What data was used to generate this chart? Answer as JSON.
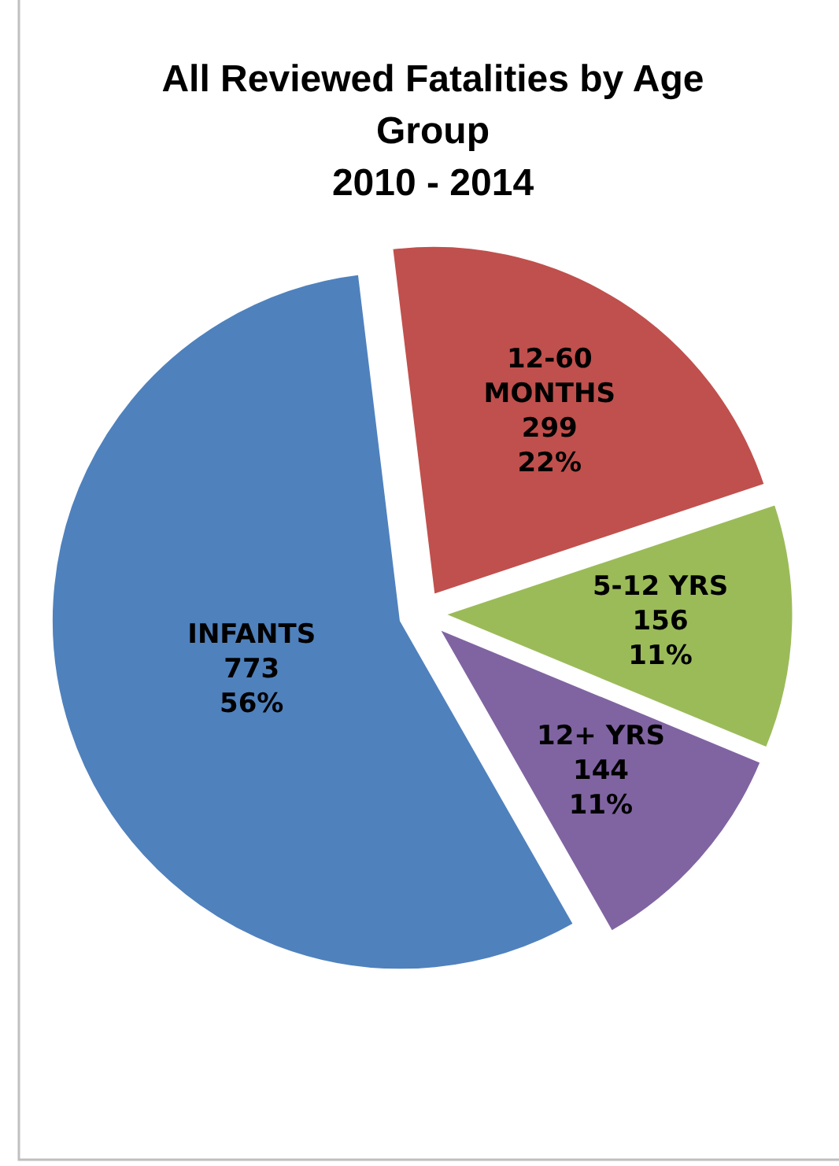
{
  "chart_data": {
    "type": "pie",
    "title": "All Reviewed Fatalities by Age Group",
    "subtitle": "2010 - 2014",
    "categories": [
      "12-60 MONTHS",
      "5-12 YRS",
      "12+ YRS",
      "INFANTS"
    ],
    "values": [
      299,
      156,
      144,
      773
    ],
    "colors": [
      "#c0504d",
      "#9bbb59",
      "#8064a2",
      "#4f81bd"
    ],
    "value_labels": [
      "299\n22%",
      "156\n11%",
      "144\n11%",
      "773\n56%"
    ]
  }
}
